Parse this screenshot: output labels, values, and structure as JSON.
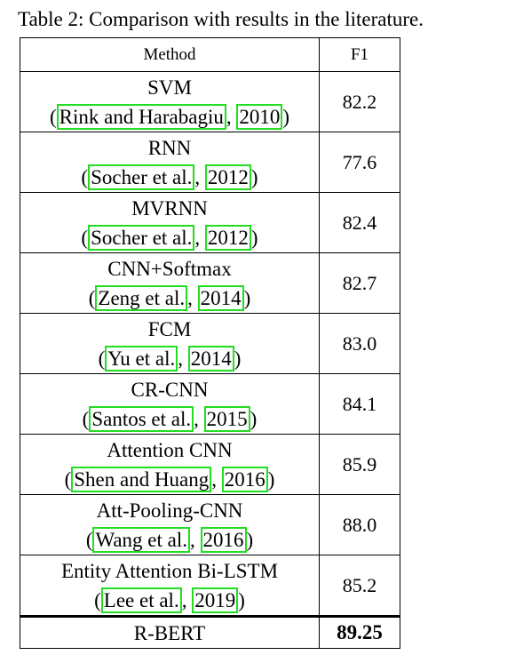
{
  "caption": "Table 2: Comparison with results in the literature.",
  "table": {
    "headers": {
      "method": "Method",
      "f1": "F1"
    },
    "rows": [
      {
        "method": "SVM",
        "author": "Rink and Harabagiu",
        "year": "2010",
        "f1": "82.2"
      },
      {
        "method": "RNN",
        "author": "Socher et al.",
        "year": "2012",
        "f1": "77.6"
      },
      {
        "method": "MVRNN",
        "author": "Socher et al.",
        "year": "2012",
        "f1": "82.4"
      },
      {
        "method": "CNN+Softmax",
        "author": "Zeng et al.",
        "year": "2014",
        "f1": "82.7"
      },
      {
        "method": "FCM",
        "author": "Yu et al.",
        "year": "2014",
        "f1": "83.0"
      },
      {
        "method": "CR-CNN",
        "author": "Santos et al.",
        "year": "2015",
        "f1": "84.1"
      },
      {
        "method": "Attention CNN",
        "author": "Shen and Huang",
        "year": "2016",
        "f1": "85.9"
      },
      {
        "method": "Att-Pooling-CNN",
        "author": "Wang et al.",
        "year": "2016",
        "f1": "88.0"
      },
      {
        "method": "Entity Attention Bi-LSTM",
        "author": "Lee et al.",
        "year": "2019",
        "f1": "85.2"
      }
    ],
    "final": {
      "method": "R-BERT",
      "f1": "89.25"
    }
  }
}
